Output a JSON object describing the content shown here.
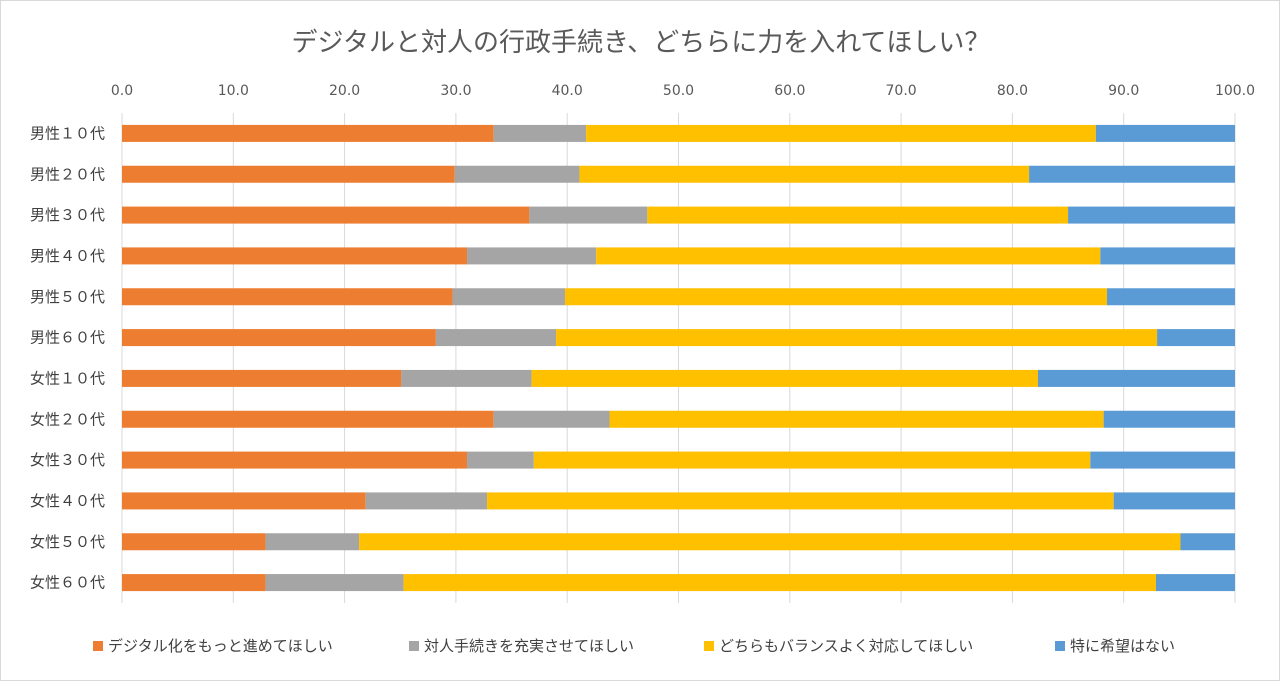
{
  "chart_data": {
    "type": "bar",
    "orientation": "horizontal",
    "stacked": true,
    "title": "デジタルと対人の行政手続き、どちらに力を入れてほしい？",
    "xlim": [
      0,
      100
    ],
    "xticks": [
      "0.0",
      "10.0",
      "20.0",
      "30.0",
      "40.0",
      "50.0",
      "60.0",
      "70.0",
      "80.0",
      "90.0",
      "100.0"
    ],
    "x_axis_position": "top",
    "grid": true,
    "legend_position": "bottom",
    "categories": [
      "男性１０代",
      "男性２０代",
      "男性３０代",
      "男性４０代",
      "男性５０代",
      "男性６０代",
      "女性１０代",
      "女性２０代",
      "女性３０代",
      "女性４０代",
      "女性５０代",
      "女性６０代"
    ],
    "series": [
      {
        "name": "デジタル化をもっと進めてほしい",
        "color": "#ED7D31",
        "values": [
          33.4,
          29.9,
          36.6,
          31.0,
          29.7,
          28.2,
          25.1,
          33.4,
          31.0,
          21.9,
          12.9,
          12.9
        ]
      },
      {
        "name": "対人手続きを充実させてほしい",
        "color": "#A5A5A5",
        "values": [
          8.3,
          11.2,
          10.6,
          11.6,
          10.1,
          10.8,
          11.7,
          10.4,
          6.0,
          10.9,
          8.4,
          12.4
        ]
      },
      {
        "name": "どちらもバランスよく対応してほしい",
        "color": "#FFC000",
        "values": [
          45.8,
          40.4,
          37.8,
          45.3,
          48.7,
          54.0,
          45.5,
          44.4,
          50.0,
          56.3,
          73.8,
          67.6
        ]
      },
      {
        "name": "特に希望はない",
        "color": "#5B9BD5",
        "values": [
          12.5,
          18.5,
          15.0,
          12.1,
          11.5,
          7.0,
          17.7,
          11.8,
          13.0,
          10.9,
          4.9,
          7.1
        ]
      }
    ]
  }
}
